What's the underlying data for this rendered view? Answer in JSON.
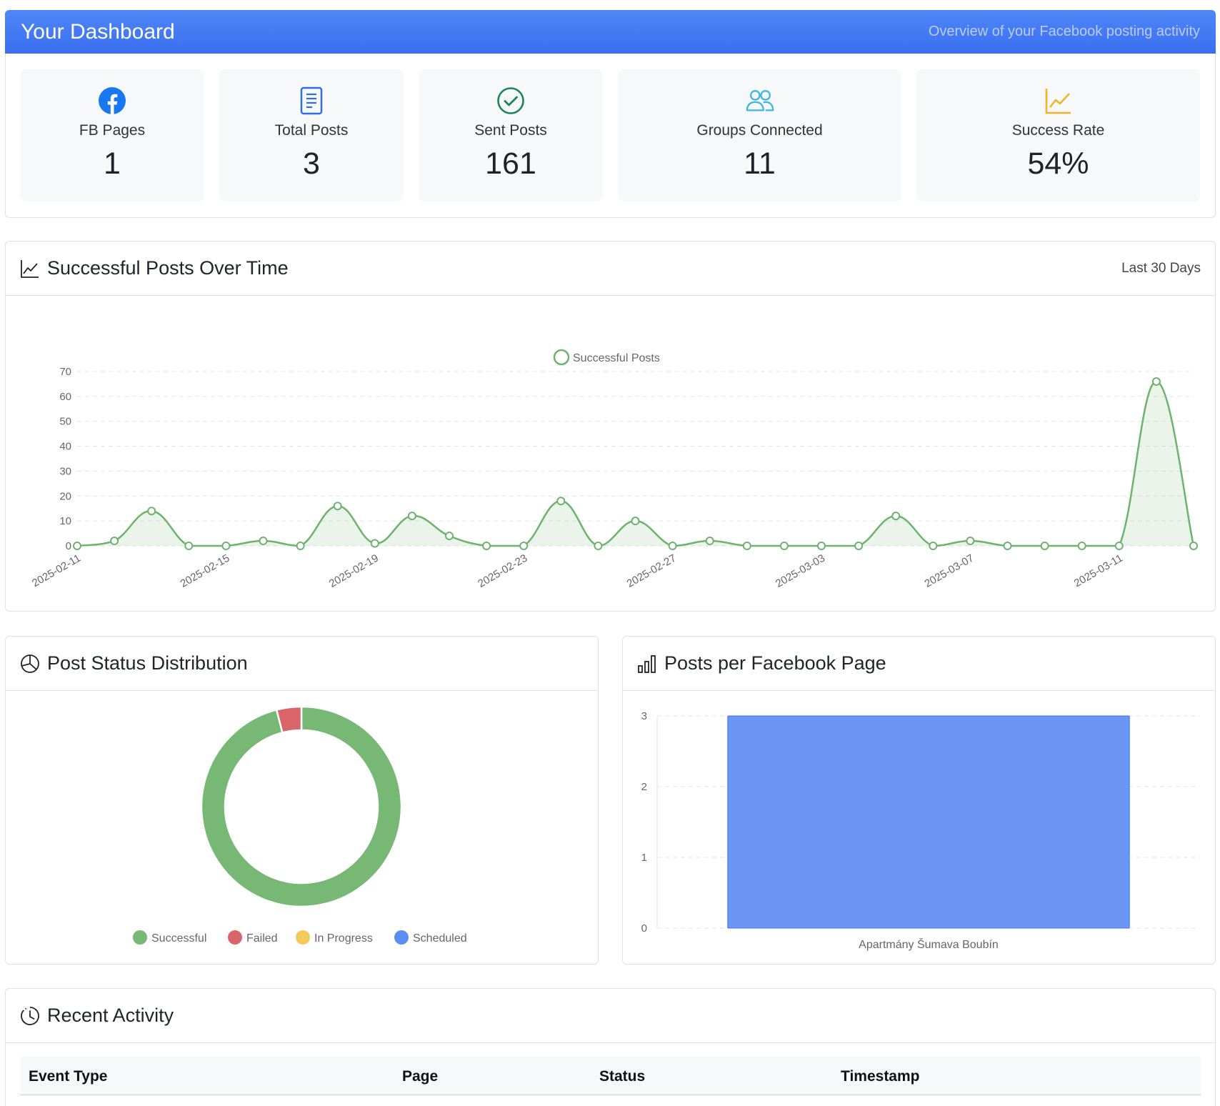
{
  "header": {
    "title": "Your Dashboard",
    "subtitle": "Overview of your Facebook posting activity"
  },
  "stats": [
    {
      "label": "FB Pages",
      "value": "1",
      "icon": "facebook-icon",
      "color": "#1877f2"
    },
    {
      "label": "Total Posts",
      "value": "3",
      "icon": "document-icon",
      "color": "#2f6fe4"
    },
    {
      "label": "Sent Posts",
      "value": "161",
      "icon": "check-circle-icon",
      "color": "#198754"
    },
    {
      "label": "Groups Connected",
      "value": "11",
      "icon": "people-icon",
      "color": "#3db6e0"
    },
    {
      "label": "Success Rate",
      "value": "54%",
      "icon": "graph-up-icon",
      "color": "#f0b429"
    }
  ],
  "line_card": {
    "title": "Successful Posts Over Time",
    "range_label": "Last 30 Days"
  },
  "status_card": {
    "title": "Post Status Distribution"
  },
  "page_card": {
    "title": "Posts per Facebook Page"
  },
  "activity_card": {
    "title": "Recent Activity",
    "columns": [
      "Event Type",
      "Page",
      "Status",
      "Timestamp"
    ]
  },
  "chart_data": [
    {
      "type": "line",
      "legend": [
        "Successful Posts"
      ],
      "legend_position": "top",
      "grid": true,
      "ylim": [
        0,
        70
      ],
      "yticks": [
        0,
        10,
        20,
        30,
        40,
        50,
        60,
        70
      ],
      "xtick_labels": [
        "2025-02-11",
        "2025-02-15",
        "2025-02-19",
        "2025-02-23",
        "2025-02-27",
        "2025-03-03",
        "2025-03-07",
        "2025-03-11"
      ],
      "x": [
        "2025-02-11",
        "2025-02-12",
        "2025-02-13",
        "2025-02-14",
        "2025-02-15",
        "2025-02-16",
        "2025-02-17",
        "2025-02-18",
        "2025-02-19",
        "2025-02-20",
        "2025-02-21",
        "2025-02-22",
        "2025-02-23",
        "2025-02-24",
        "2025-02-25",
        "2025-02-26",
        "2025-02-27",
        "2025-02-28",
        "2025-03-01",
        "2025-03-02",
        "2025-03-03",
        "2025-03-04",
        "2025-03-05",
        "2025-03-06",
        "2025-03-07",
        "2025-03-08",
        "2025-03-09",
        "2025-03-10",
        "2025-03-11",
        "2025-03-12",
        "2025-03-13"
      ],
      "series": [
        {
          "name": "Successful Posts",
          "color": "#6db36d",
          "values": [
            0,
            2,
            14,
            0,
            0,
            2,
            0,
            16,
            1,
            12,
            4,
            0,
            0,
            18,
            0,
            10,
            0,
            2,
            0,
            0,
            0,
            0,
            12,
            0,
            2,
            0,
            0,
            0,
            0,
            66,
            0
          ]
        }
      ]
    },
    {
      "type": "pie",
      "variant": "doughnut",
      "legend_position": "bottom",
      "labels": [
        "Successful",
        "Failed",
        "In Progress",
        "Scheduled"
      ],
      "values": [
        96,
        4,
        0,
        0
      ],
      "colors": [
        "#76b874",
        "#d9656b",
        "#f6c95b",
        "#5b8ef0"
      ]
    },
    {
      "type": "bar",
      "categories": [
        "Apartmány Šumava Boubín"
      ],
      "values": [
        3
      ],
      "ylim": [
        0,
        3
      ],
      "yticks": [
        0,
        1,
        2,
        3
      ],
      "color": "#6b96f5",
      "grid": true
    }
  ]
}
